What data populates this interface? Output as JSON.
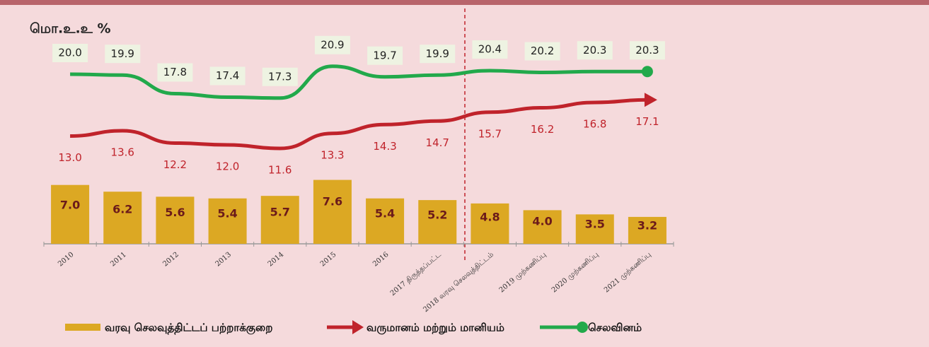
{
  "chart_data": {
    "type": "bar-line",
    "y_label": "மொ.உ.உ %",
    "categories": [
      "2010",
      "2011",
      "2012",
      "2013",
      "2014",
      "2015",
      "2016",
      "2017 திருத்தப்பட்ட",
      "2018 வரவு செலவுத்திட்டம்",
      "2019 முற்கணிப்பு",
      "2020 முற்கணிப்பு",
      "2021 முற்கணிப்பு"
    ],
    "series": [
      {
        "name": "வரவு செலவுத்திட்டப் பற்றாக்குறை",
        "kind": "bar",
        "color": "#dca823",
        "values": [
          7.0,
          6.2,
          5.6,
          5.4,
          5.7,
          7.6,
          5.4,
          5.2,
          4.8,
          4.0,
          3.5,
          3.2
        ],
        "value_labels": [
          "7.0",
          "6.2",
          "5.6",
          "5.4",
          "5.7",
          "7.6",
          "5.4",
          "5.2",
          "4.8",
          "4.0",
          "3.5",
          "3.2"
        ]
      },
      {
        "name": "வருமானம் மற்றும் மானியம்",
        "kind": "line",
        "color": "#c0232b",
        "values": [
          13.0,
          13.6,
          12.2,
          12.0,
          11.6,
          13.3,
          14.3,
          14.7,
          15.7,
          16.2,
          16.8,
          17.1
        ],
        "value_labels": [
          "13.0",
          "13.6",
          "12.2",
          "12.0",
          "11.6",
          "13.3",
          "14.3",
          "14.7",
          "15.7",
          "16.2",
          "16.8",
          "17.1"
        ]
      },
      {
        "name": "செலவினம்",
        "kind": "line",
        "color": "#22a94b",
        "values": [
          20.0,
          19.9,
          17.8,
          17.4,
          17.3,
          20.9,
          19.7,
          19.9,
          20.4,
          20.2,
          20.3,
          20.3
        ],
        "value_labels": [
          "20.0",
          "19.9",
          "17.8",
          "17.4",
          "17.3",
          "20.9",
          "19.7",
          "19.9",
          "20.4",
          "20.2",
          "20.3",
          "20.3"
        ]
      }
    ]
  }
}
